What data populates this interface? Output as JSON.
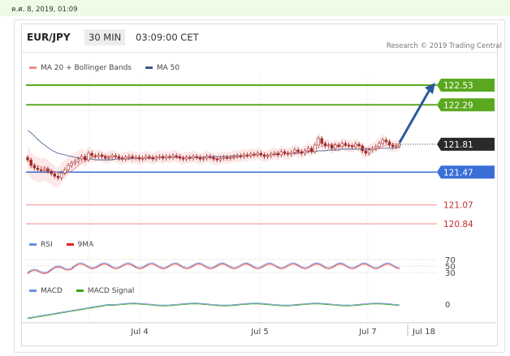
{
  "timestamp": "ค.ศ. 8, 2019, 01:09",
  "header": {
    "pair": "EUR/JPY",
    "timeframe": "30 MIN",
    "time": "03:09:00 CET"
  },
  "legend_main": [
    {
      "label": "MA 20 + Bollinger Bands",
      "color": "#f08a8a"
    },
    {
      "label": "MA 50",
      "color": "#3a5a8c"
    }
  ],
  "research": "Research © 2019 Trading Central",
  "legend_rsi": [
    {
      "label": "RSI",
      "color": "#6a8fe0"
    },
    {
      "label": "9MA",
      "color": "#e02020"
    }
  ],
  "legend_macd": [
    {
      "label": "MACD",
      "color": "#6a8fe0"
    },
    {
      "label": "MACD Signal",
      "color": "#3aa020"
    }
  ],
  "colors": {
    "resistance": "#5aa820",
    "pivot": "#3a6fd8",
    "support": "#f08a8a",
    "arrow": "#2a5a9c",
    "candle": "#a02a2a"
  },
  "chart_data": {
    "type": "candlestick",
    "price_levels": [
      {
        "value": 122.53,
        "label": "122.53",
        "kind": "resistance"
      },
      {
        "value": 122.29,
        "label": "122.29",
        "kind": "resistance"
      },
      {
        "value": 121.81,
        "label": "121.81",
        "kind": "current"
      },
      {
        "value": 121.47,
        "label": "121.47",
        "kind": "pivot"
      },
      {
        "value": 121.07,
        "label": "121.07",
        "kind": "support"
      },
      {
        "value": 120.84,
        "label": "120.84",
        "kind": "support"
      }
    ],
    "x_ticks": [
      "Jul 4",
      "Jul 5",
      "Jul 7",
      "Jul 18"
    ],
    "rsi_ticks": [
      "70",
      "50",
      "30"
    ],
    "macd_ticks": [
      "0"
    ],
    "price_range": [
      120.75,
      122.65
    ],
    "closes": [
      121.62,
      121.55,
      121.52,
      121.5,
      121.49,
      121.51,
      121.48,
      121.45,
      121.42,
      121.4,
      121.46,
      121.5,
      121.55,
      121.58,
      121.6,
      121.63,
      121.66,
      121.62,
      121.7,
      121.67,
      121.66,
      121.68,
      121.66,
      121.64,
      121.65,
      121.67,
      121.66,
      121.64,
      121.63,
      121.65,
      121.66,
      121.64,
      121.65,
      121.63,
      121.64,
      121.66,
      121.65,
      121.63,
      121.65,
      121.66,
      121.64,
      121.66,
      121.65,
      121.67,
      121.66,
      121.64,
      121.63,
      121.65,
      121.64,
      121.66,
      121.65,
      121.63,
      121.64,
      121.66,
      121.65,
      121.63,
      121.62,
      121.64,
      121.65,
      121.64,
      121.65,
      121.66,
      121.67,
      121.66,
      121.68,
      121.67,
      121.69,
      121.68,
      121.7,
      121.68,
      121.66,
      121.67,
      121.69,
      121.7,
      121.68,
      121.72,
      121.7,
      121.69,
      121.71,
      121.74,
      121.72,
      121.7,
      121.73,
      121.76,
      121.72,
      121.8,
      121.88,
      121.82,
      121.79,
      121.8,
      121.76,
      121.8,
      121.78,
      121.82,
      121.8,
      121.79,
      121.78,
      121.81,
      121.79,
      121.73,
      121.7,
      121.74,
      121.76,
      121.78,
      121.82,
      121.86,
      121.84,
      121.8,
      121.78,
      121.79,
      121.81
    ],
    "ma50": [
      121.98,
      121.95,
      121.91,
      121.87,
      121.83,
      121.8,
      121.77,
      121.74,
      121.72,
      121.7,
      121.69,
      121.68,
      121.67,
      121.66,
      121.65,
      121.64,
      121.64,
      121.63,
      121.63,
      121.63,
      121.62,
      121.62,
      121.62,
      121.62,
      121.62,
      121.62,
      121.63,
      121.63,
      121.63,
      121.63,
      121.63,
      121.64,
      121.64,
      121.64,
      121.64,
      121.64,
      121.64,
      121.64,
      121.65,
      121.65,
      121.65,
      121.65,
      121.65,
      121.65,
      121.65,
      121.65,
      121.65,
      121.65,
      121.65,
      121.65,
      121.65,
      121.65,
      121.65,
      121.66,
      121.66,
      121.66,
      121.66,
      121.66,
      121.66,
      121.66,
      121.66,
      121.67,
      121.67,
      121.67,
      121.67,
      121.67,
      121.67,
      121.68,
      121.68,
      121.68,
      121.68,
      121.68,
      121.68,
      121.69,
      121.69,
      121.69,
      121.69,
      121.7,
      121.7,
      121.7,
      121.7,
      121.71,
      121.71,
      121.72,
      121.72,
      121.72,
      121.73,
      121.73,
      121.73,
      121.74,
      121.74,
      121.74,
      121.74,
      121.75,
      121.75,
      121.75,
      121.75,
      121.75,
      121.75,
      121.75,
      121.75,
      121.75,
      121.75,
      121.75,
      121.76,
      121.76,
      121.76,
      121.76,
      121.76,
      121.77,
      121.77
    ],
    "target_arrow": {
      "from": 121.81,
      "to": 122.53
    }
  }
}
